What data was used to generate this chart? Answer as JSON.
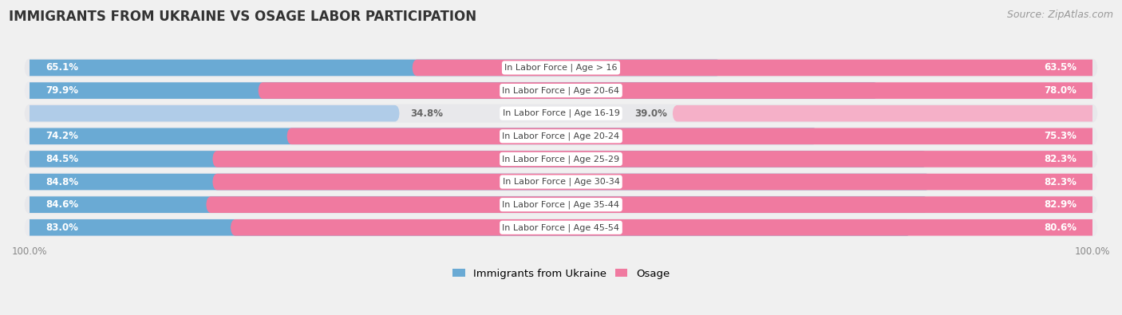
{
  "title": "IMMIGRANTS FROM UKRAINE VS OSAGE LABOR PARTICIPATION",
  "source": "Source: ZipAtlas.com",
  "categories": [
    "In Labor Force | Age > 16",
    "In Labor Force | Age 20-64",
    "In Labor Force | Age 16-19",
    "In Labor Force | Age 20-24",
    "In Labor Force | Age 25-29",
    "In Labor Force | Age 30-34",
    "In Labor Force | Age 35-44",
    "In Labor Force | Age 45-54"
  ],
  "ukraine_values": [
    65.1,
    79.9,
    34.8,
    74.2,
    84.5,
    84.8,
    84.6,
    83.0
  ],
  "osage_values": [
    63.5,
    78.0,
    39.0,
    75.3,
    82.3,
    82.3,
    82.9,
    80.6
  ],
  "ukraine_color_strong": "#6aaad4",
  "ukraine_color_light": "#b0cce8",
  "osage_color_strong": "#f07aa0",
  "osage_color_light": "#f5b0c8",
  "background_color": "#f0f0f0",
  "row_bg_odd": "#e8e8eb",
  "row_bg_even": "#ebebee",
  "title_fontsize": 12,
  "source_fontsize": 9,
  "label_fontsize": 8.5,
  "category_fontsize": 8,
  "legend_fontsize": 9.5,
  "axis_label_fontsize": 8.5,
  "light_threshold": 50.0
}
